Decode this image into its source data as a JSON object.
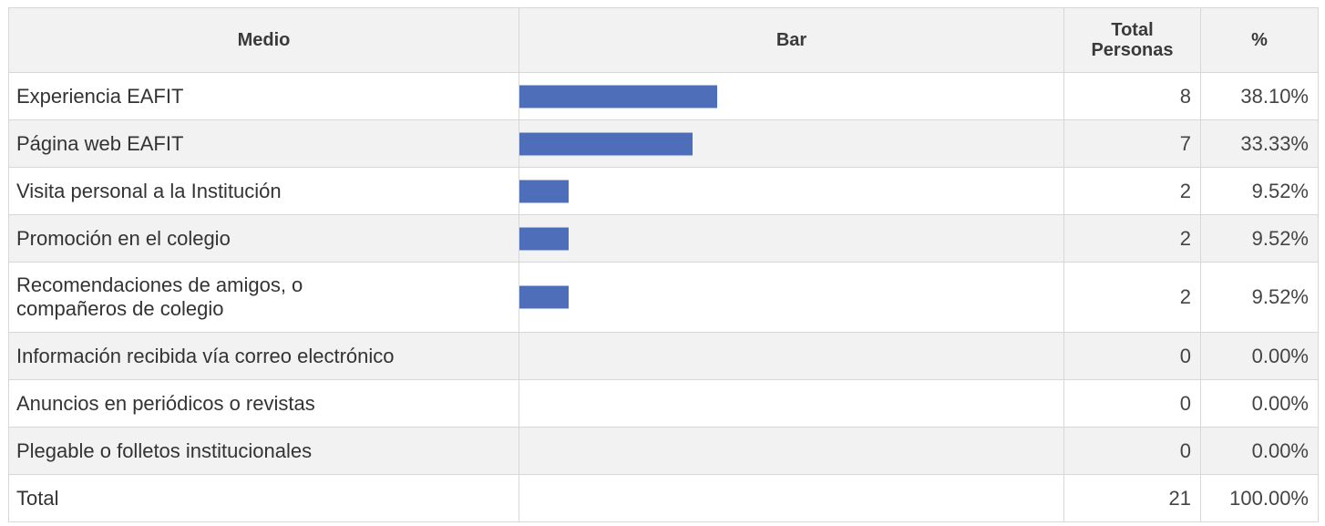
{
  "chart_data": {
    "type": "table",
    "columns": [
      "Medio",
      "Bar",
      "Total Personas",
      "%"
    ],
    "header": {
      "medio": "Medio",
      "bar": "Bar",
      "total_line1": "Total",
      "total_line2": "Personas",
      "pct": "%"
    },
    "bar_color": "#4f6eb9",
    "bar_max_value": 22,
    "rows": [
      {
        "medio": "Experiencia EAFIT",
        "total": 8,
        "total_label": "8",
        "pct_label": "38.10%"
      },
      {
        "medio": "Página web EAFIT",
        "total": 7,
        "total_label": "7",
        "pct_label": "33.33%"
      },
      {
        "medio": "Visita personal a la Institución",
        "total": 2,
        "total_label": "2",
        "pct_label": "9.52%"
      },
      {
        "medio": "Promoción en el colegio",
        "total": 2,
        "total_label": "2",
        "pct_label": "9.52%"
      },
      {
        "medio_line1": "Recomendaciones de amigos, o",
        "medio_line2": "compañeros de colegio",
        "total": 2,
        "total_label": "2",
        "pct_label": "9.52%"
      },
      {
        "medio": "Información recibida vía correo electrónico",
        "total": 0,
        "total_label": "0",
        "pct_label": "0.00%"
      },
      {
        "medio": "Anuncios en periódicos o revistas",
        "total": 0,
        "total_label": "0",
        "pct_label": "0.00%"
      },
      {
        "medio": "Plegable o folletos institucionales",
        "total": 0,
        "total_label": "0",
        "pct_label": "0.00%"
      }
    ],
    "total_row": {
      "medio": "Total",
      "total_label": "21",
      "pct_label": "100.00%"
    }
  }
}
